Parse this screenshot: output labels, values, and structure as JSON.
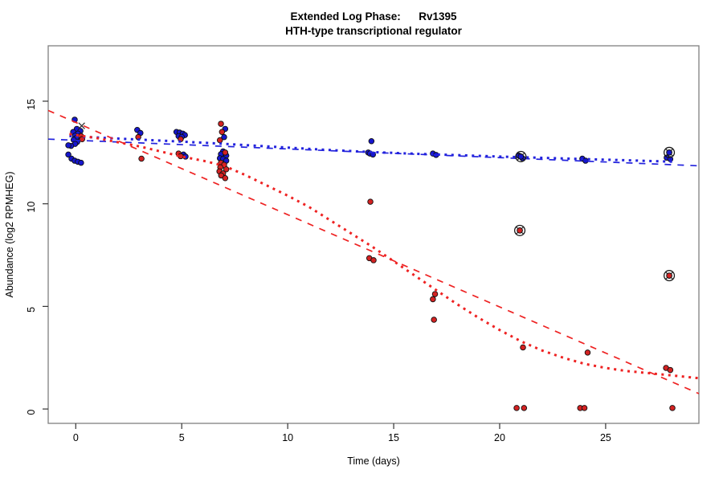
{
  "figure": {
    "title_line1": "Extended Log Phase:      Rv1395",
    "title_line2": "HTH-type transcriptional regulator"
  },
  "chart_data": {
    "type": "scatter",
    "title": "Extended Log Phase: Rv1395 / HTH-type transcriptional regulator",
    "xlabel": "Time  (days)",
    "ylabel": "Abundance  (log2 RPMHEG)",
    "xlim": [
      -1.3,
      29.4
    ],
    "ylim": [
      -0.7,
      17.7
    ],
    "xticks": [
      0,
      5,
      10,
      15,
      20,
      25
    ],
    "yticks": [
      0,
      5,
      10,
      15
    ],
    "grid": false,
    "legend": "none",
    "colors": {
      "series_blue": "#1616CE",
      "series_red": "#D42222",
      "line_blue": "#2222DD",
      "line_red": "#EE2222",
      "flag_marker": "#1a1a1a",
      "point_stroke": "#101010",
      "box": "#808080",
      "tick": "#333333",
      "text": "#000000"
    },
    "series": [
      {
        "name": "blue-points",
        "color_key": "series_blue",
        "points": [
          [
            -0.05,
            14.1
          ],
          [
            0.05,
            13.65
          ],
          [
            0.22,
            13.55
          ],
          [
            -0.12,
            13.5
          ],
          [
            0.1,
            13.42
          ],
          [
            -0.03,
            13.32
          ],
          [
            0.16,
            13.27
          ],
          [
            0.02,
            13.2
          ],
          [
            -0.1,
            13.12
          ],
          [
            0.07,
            13.02
          ],
          [
            -0.03,
            12.92
          ],
          [
            -0.22,
            12.82
          ],
          [
            -0.35,
            12.85
          ],
          [
            -0.35,
            12.4
          ],
          [
            -0.2,
            12.2
          ],
          [
            -0.05,
            12.1
          ],
          [
            0.1,
            12.05
          ],
          [
            0.25,
            12.0
          ],
          [
            2.9,
            13.6
          ],
          [
            3.05,
            13.45
          ],
          [
            4.75,
            13.5
          ],
          [
            4.9,
            13.47
          ],
          [
            5.05,
            13.42
          ],
          [
            5.15,
            13.35
          ],
          [
            4.85,
            13.3
          ],
          [
            5.0,
            13.26
          ],
          [
            5.08,
            12.4
          ],
          [
            5.18,
            12.3
          ],
          [
            7.05,
            13.65
          ],
          [
            7.0,
            13.25
          ],
          [
            6.95,
            12.55
          ],
          [
            6.85,
            12.42
          ],
          [
            7.1,
            12.35
          ],
          [
            6.8,
            12.22
          ],
          [
            6.95,
            12.18
          ],
          [
            7.1,
            12.1
          ],
          [
            6.9,
            11.95
          ],
          [
            13.95,
            13.05
          ],
          [
            13.8,
            12.5
          ],
          [
            13.88,
            12.45
          ],
          [
            14.02,
            12.4
          ],
          [
            16.85,
            12.45
          ],
          [
            17.0,
            12.38
          ],
          [
            20.9,
            12.35
          ],
          [
            21.0,
            12.3
          ],
          [
            21.08,
            12.22
          ],
          [
            23.9,
            12.2
          ],
          [
            24.05,
            12.1
          ],
          [
            28.0,
            12.5
          ],
          [
            27.88,
            12.25
          ],
          [
            28.05,
            12.18
          ]
        ]
      },
      {
        "name": "red-points",
        "color_key": "series_red",
        "points": [
          [
            0.25,
            13.3
          ],
          [
            0.3,
            13.15
          ],
          [
            2.95,
            13.25
          ],
          [
            3.1,
            12.2
          ],
          [
            4.95,
            13.15
          ],
          [
            4.85,
            12.45
          ],
          [
            4.95,
            12.32
          ],
          [
            6.85,
            13.9
          ],
          [
            6.9,
            13.5
          ],
          [
            6.8,
            13.1
          ],
          [
            7.05,
            12.5
          ],
          [
            6.85,
            12.0
          ],
          [
            7.0,
            11.9
          ],
          [
            6.82,
            11.78
          ],
          [
            7.1,
            11.68
          ],
          [
            6.78,
            11.58
          ],
          [
            6.95,
            11.48
          ],
          [
            6.86,
            11.38
          ],
          [
            7.05,
            11.25
          ],
          [
            13.9,
            10.1
          ],
          [
            13.85,
            7.35
          ],
          [
            14.05,
            7.25
          ],
          [
            16.95,
            5.6
          ],
          [
            16.85,
            5.35
          ],
          [
            16.9,
            4.35
          ],
          [
            20.95,
            8.7
          ],
          [
            21.1,
            3.0
          ],
          [
            20.8,
            0.05
          ],
          [
            21.15,
            0.05
          ],
          [
            24.15,
            2.75
          ],
          [
            23.8,
            0.05
          ],
          [
            24.0,
            0.05
          ],
          [
            28.0,
            6.5
          ],
          [
            27.85,
            2.0
          ],
          [
            28.05,
            1.9
          ],
          [
            28.15,
            0.05
          ]
        ]
      }
    ],
    "fit_lines": [
      {
        "name": "blue-dashed-fit",
        "style": "dashed",
        "color_key": "line_blue",
        "points": [
          [
            -1.3,
            13.15
          ],
          [
            29.4,
            11.85
          ]
        ]
      },
      {
        "name": "blue-dotted-loess",
        "style": "dotted",
        "color_key": "line_blue",
        "points": [
          [
            -0.3,
            13.3
          ],
          [
            2,
            13.18
          ],
          [
            4,
            13.08
          ],
          [
            6,
            12.98
          ],
          [
            8,
            12.86
          ],
          [
            10,
            12.74
          ],
          [
            12,
            12.62
          ],
          [
            14,
            12.52
          ],
          [
            16,
            12.44
          ],
          [
            18,
            12.37
          ],
          [
            20,
            12.3
          ],
          [
            22,
            12.24
          ],
          [
            24,
            12.18
          ],
          [
            26,
            12.12
          ],
          [
            28.2,
            12.05
          ]
        ]
      },
      {
        "name": "red-dashed-fit",
        "style": "dashed",
        "color_key": "line_red",
        "points": [
          [
            -1.3,
            14.55
          ],
          [
            29.4,
            0.75
          ]
        ]
      },
      {
        "name": "red-dotted-loess",
        "style": "dotted",
        "color_key": "line_red",
        "points": [
          [
            -0.3,
            13.4
          ],
          [
            1,
            13.2
          ],
          [
            2,
            13.0
          ],
          [
            3,
            12.8
          ],
          [
            4,
            12.55
          ],
          [
            5,
            12.3
          ],
          [
            6,
            12.1
          ],
          [
            7,
            11.85
          ],
          [
            8,
            11.4
          ],
          [
            9,
            10.9
          ],
          [
            10,
            10.4
          ],
          [
            11,
            9.85
          ],
          [
            12,
            9.2
          ],
          [
            13,
            8.55
          ],
          [
            14,
            7.9
          ],
          [
            15,
            7.2
          ],
          [
            16,
            6.5
          ],
          [
            17,
            5.8
          ],
          [
            18,
            5.1
          ],
          [
            19,
            4.45
          ],
          [
            20,
            3.85
          ],
          [
            21,
            3.3
          ],
          [
            22,
            2.85
          ],
          [
            23,
            2.5
          ],
          [
            24,
            2.2
          ],
          [
            25,
            2.0
          ],
          [
            26,
            1.85
          ],
          [
            27,
            1.75
          ],
          [
            28,
            1.65
          ],
          [
            29.4,
            1.5
          ]
        ]
      }
    ],
    "flagged_points": [
      {
        "x": 21.0,
        "y": 12.3,
        "series": "blue"
      },
      {
        "x": 20.95,
        "y": 8.7,
        "series": "red"
      },
      {
        "x": 28.0,
        "y": 12.5,
        "series": "blue"
      },
      {
        "x": 28.0,
        "y": 6.5,
        "series": "red"
      }
    ],
    "cross_marker": {
      "x": 0.28,
      "y": 13.8
    }
  }
}
